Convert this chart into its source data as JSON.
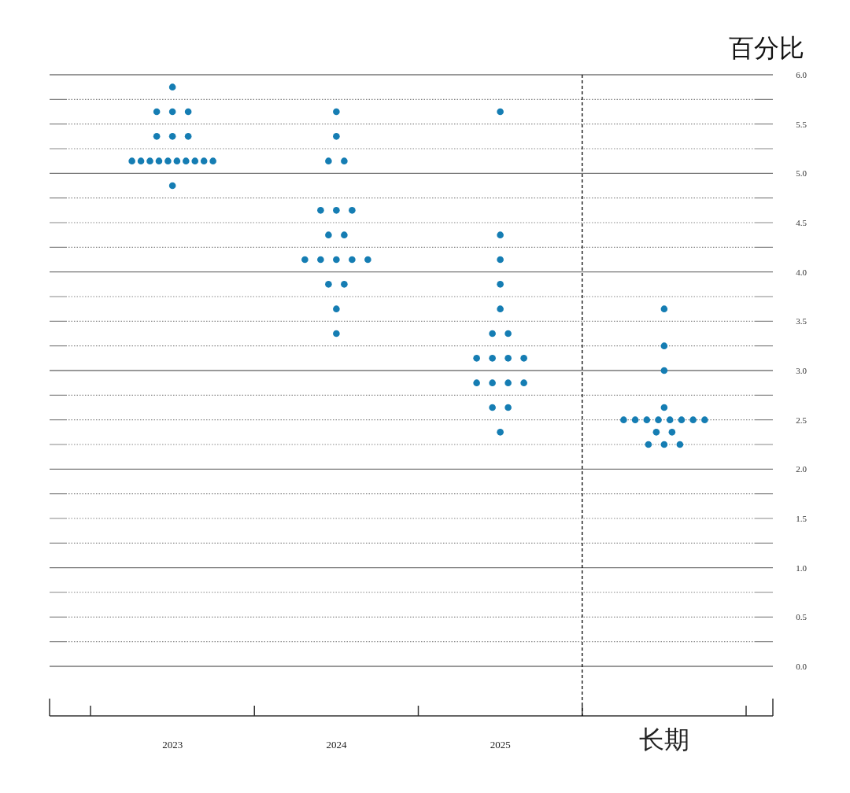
{
  "chart_data": {
    "type": "scatter",
    "categories": [
      "2023",
      "2024",
      "2025",
      "长期"
    ],
    "ylabel": "百分比",
    "marker": "circle",
    "grid": "y",
    "ylim": [
      0,
      6
    ],
    "yticks": [
      {
        "value": 0,
        "label": "0.0"
      },
      {
        "value": 0.25,
        "label": null
      },
      {
        "value": 0.5,
        "label": "0.5"
      },
      {
        "value": 0.75,
        "label": null
      },
      {
        "value": 1,
        "label": "1.0"
      },
      {
        "value": 1.25,
        "label": null
      },
      {
        "value": 1.5,
        "label": "1.5"
      },
      {
        "value": 1.75,
        "label": null
      },
      {
        "value": 2,
        "label": "2.0"
      },
      {
        "value": 2.25,
        "label": null
      },
      {
        "value": 2.5,
        "label": "2.5"
      },
      {
        "value": 2.75,
        "label": null
      },
      {
        "value": 3,
        "label": "3.0"
      },
      {
        "value": 3.25,
        "label": null
      },
      {
        "value": 3.5,
        "label": "3.5"
      },
      {
        "value": 3.75,
        "label": null
      },
      {
        "value": 4,
        "label": "4.0"
      },
      {
        "value": 4.25,
        "label": null
      },
      {
        "value": 4.5,
        "label": "4.5"
      },
      {
        "value": 4.75,
        "label": null
      },
      {
        "value": 5,
        "label": "5.0"
      },
      {
        "value": 5.25,
        "label": null
      },
      {
        "value": 5.5,
        "label": "5.5"
      },
      {
        "value": 5.75,
        "label": null
      },
      {
        "value": 6,
        "label": "6.0"
      }
    ],
    "series": [
      {
        "color": "#157db3",
        "values": [
          5.875,
          5.625,
          5.625,
          3.625
        ]
      },
      {
        "color": "#157db3",
        "values": [
          5.625,
          5.375,
          4.375,
          3.25
        ]
      },
      {
        "color": "#157db3",
        "values": [
          5.625,
          5.125,
          4.125,
          3
        ]
      },
      {
        "color": "#157db3",
        "values": [
          5.625,
          5.125,
          3.875,
          2.625
        ]
      },
      {
        "color": "#157db3",
        "values": [
          5.375,
          4.625,
          3.625,
          2.5
        ]
      },
      {
        "color": "#157db3",
        "values": [
          5.375,
          4.625,
          3.375,
          2.5
        ]
      },
      {
        "color": "#157db3",
        "values": [
          5.375,
          4.625,
          3.375,
          2.5
        ]
      },
      {
        "color": "#157db3",
        "values": [
          5.125,
          4.375,
          3.125,
          2.5
        ]
      },
      {
        "color": "#157db3",
        "values": [
          5.125,
          4.375,
          3.125,
          2.5
        ]
      },
      {
        "color": "#157db3",
        "values": [
          5.125,
          4.125,
          3.125,
          2.5
        ]
      },
      {
        "color": "#157db3",
        "values": [
          5.125,
          4.125,
          3.125,
          2.5
        ]
      },
      {
        "color": "#157db3",
        "values": [
          5.125,
          4.125,
          2.875,
          2.5
        ]
      },
      {
        "color": "#157db3",
        "values": [
          5.125,
          4.125,
          2.875,
          2.375
        ]
      },
      {
        "color": "#157db3",
        "values": [
          5.125,
          4.125,
          2.875,
          2.375
        ]
      },
      {
        "color": "#157db3",
        "values": [
          5.125,
          3.875,
          2.875,
          2.25
        ]
      },
      {
        "color": "#157db3",
        "values": [
          5.125,
          3.875,
          2.625,
          2.25
        ]
      },
      {
        "color": "#157db3",
        "values": [
          5.125,
          3.625,
          2.625,
          2.25
        ]
      },
      {
        "color": "#157db3",
        "values": [
          4.875,
          3.375,
          2.375,
          null
        ]
      }
    ]
  }
}
